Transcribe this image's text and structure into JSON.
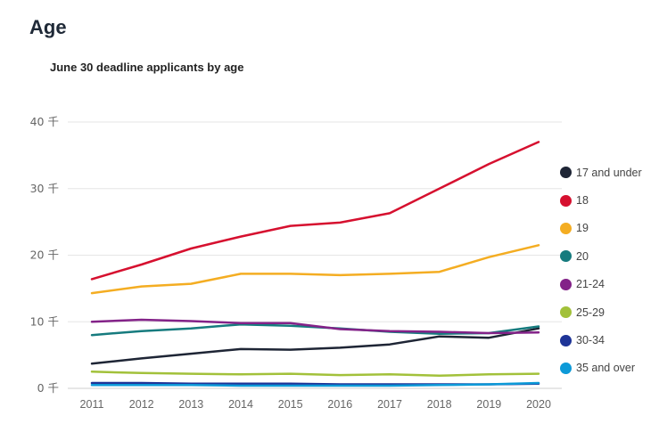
{
  "page": {
    "title": "Age"
  },
  "chart_data": {
    "type": "line",
    "title": "June 30 deadline applicants by age",
    "xlabel": "",
    "ylabel": "",
    "x": [
      "2011",
      "2012",
      "2013",
      "2014",
      "2015",
      "2016",
      "2017",
      "2018",
      "2019",
      "2020"
    ],
    "ylim": [
      0,
      40
    ],
    "yticks": [
      {
        "value": 0,
        "label": "0 千"
      },
      {
        "value": 10,
        "label": "10 千"
      },
      {
        "value": 20,
        "label": "20 千"
      },
      {
        "value": 30,
        "label": "30 千"
      },
      {
        "value": 40,
        "label": "40 千"
      }
    ],
    "grid": true,
    "legend_position": "right",
    "series": [
      {
        "name": "17 and under",
        "color": "#1e2535",
        "values": [
          3.7,
          4.5,
          5.2,
          5.9,
          5.8,
          6.1,
          6.6,
          7.8,
          7.6,
          9.0
        ]
      },
      {
        "name": "18",
        "color": "#d6102f",
        "values": [
          16.4,
          18.6,
          21.0,
          22.8,
          24.4,
          24.9,
          26.3,
          30.0,
          33.7,
          37.0
        ]
      },
      {
        "name": "19",
        "color": "#f4ad22",
        "values": [
          14.3,
          15.3,
          15.7,
          17.2,
          17.2,
          17.0,
          17.2,
          17.5,
          19.7,
          21.5
        ]
      },
      {
        "name": "20",
        "color": "#167b7e",
        "values": [
          8.0,
          8.6,
          9.0,
          9.6,
          9.4,
          9.0,
          8.5,
          8.2,
          8.3,
          9.3
        ]
      },
      {
        "name": "21-24",
        "color": "#832288",
        "values": [
          10.0,
          10.3,
          10.1,
          9.8,
          9.8,
          8.9,
          8.6,
          8.5,
          8.3,
          8.4
        ]
      },
      {
        "name": "25-29",
        "color": "#a2c13a",
        "values": [
          2.5,
          2.3,
          2.2,
          2.1,
          2.2,
          2.0,
          2.1,
          1.9,
          2.1,
          2.2
        ]
      },
      {
        "name": "30-34",
        "color": "#1e3497",
        "values": [
          0.8,
          0.8,
          0.7,
          0.7,
          0.7,
          0.6,
          0.6,
          0.6,
          0.6,
          0.7
        ]
      },
      {
        "name": "35 and over",
        "color": "#0d9ad8",
        "values": [
          0.5,
          0.5,
          0.5,
          0.4,
          0.4,
          0.4,
          0.4,
          0.5,
          0.6,
          0.8
        ]
      }
    ]
  }
}
